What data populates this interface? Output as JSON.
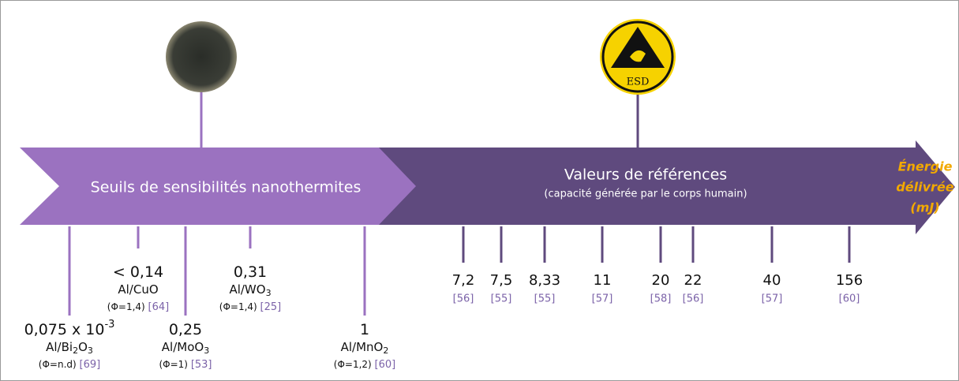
{
  "left_arrow_label": "Seuils de sensibilités nanothermites",
  "right_arrow_title": "Valeurs de références",
  "right_arrow_subtitle": "(capacité générée par le corps humain)",
  "axis_label": [
    "Énergie",
    "délivrée",
    "(mJ)"
  ],
  "esd_icon_label": "ESD",
  "nanothermites": [
    {
      "value": "0,075 x 10",
      "exponent": "-3",
      "formula": [
        "Al/Bi",
        "2",
        "O",
        "3"
      ],
      "condition": "(Φ=n.d)",
      "ref": "[69]"
    },
    {
      "value": "< 0,14",
      "formula": [
        "Al/CuO"
      ],
      "condition": "(Φ=1,4)",
      "ref": "[64]"
    },
    {
      "value": "0,25",
      "formula": [
        "Al/MoO",
        "3"
      ],
      "condition": "(Φ=1)",
      "ref": "[53]"
    },
    {
      "value": "0,31",
      "formula": [
        "Al/WO",
        "3"
      ],
      "condition": "(Φ=1,4)",
      "ref": "[25]"
    },
    {
      "value": "1",
      "formula": [
        "Al/MnO",
        "2"
      ],
      "condition": "(Φ=1,2)",
      "ref": "[60]"
    }
  ],
  "references": [
    {
      "value": "7,2",
      "ref": "[56]"
    },
    {
      "value": "7,5",
      "ref": "[55]"
    },
    {
      "value": "8,33",
      "ref": "[55]"
    },
    {
      "value": "11",
      "ref": "[57]"
    },
    {
      "value": "20",
      "ref": "[58]"
    },
    {
      "value": "22",
      "ref": "[56]"
    },
    {
      "value": "40",
      "ref": "[57]"
    },
    {
      "value": "156",
      "ref": "[60]"
    }
  ]
}
